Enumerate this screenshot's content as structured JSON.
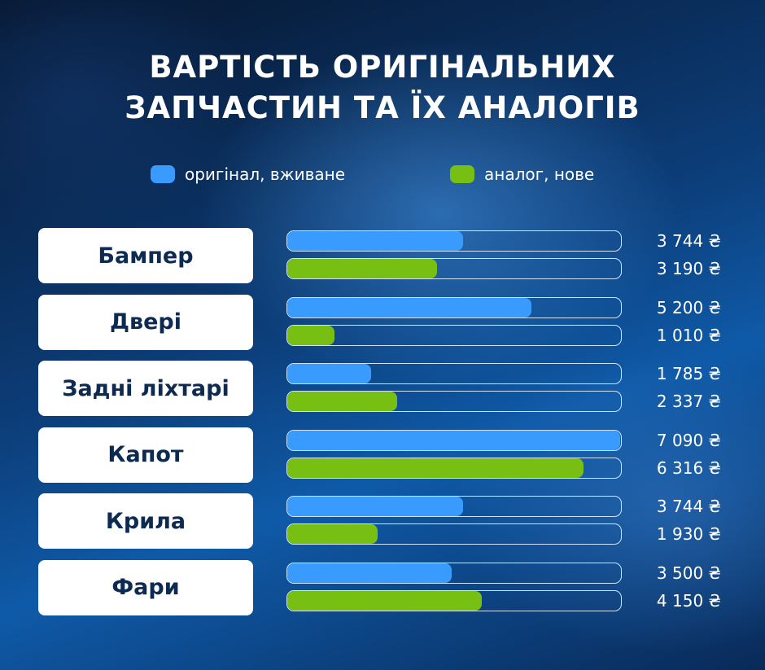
{
  "title": {
    "line1": "ВАРТІСТЬ ОРИГІНАЛЬНИХ",
    "line2": "ЗАПЧАСТИН ТА ЇХ АНАЛОГІВ"
  },
  "legend": [
    {
      "label": "оригінал, вживане",
      "color": "#3a9bff"
    },
    {
      "label": "аналог, нове",
      "color": "#78bf13"
    }
  ],
  "chart_data": {
    "type": "bar",
    "orientation": "horizontal",
    "title": "ВАРТІСТЬ ОРИГІНАЛЬНИХ ЗАПЧАСТИН ТА ЇХ АНАЛОГІВ",
    "categories": [
      "Бампер",
      "Двері",
      "Задні ліхтарі",
      "Капот",
      "Крила",
      "Фари"
    ],
    "series": [
      {
        "name": "оригінал, вживане",
        "color": "#3a9bff",
        "values": [
          3744,
          5200,
          1785,
          7090,
          3744,
          3500
        ],
        "labels": [
          "3 744 ₴",
          "5 200 ₴",
          "1 785 ₴",
          "7 090 ₴",
          "3 744 ₴",
          "3 500 ₴"
        ]
      },
      {
        "name": "аналог, нове",
        "color": "#78bf13",
        "values": [
          3190,
          1010,
          2337,
          6316,
          1930,
          4150
        ],
        "labels": [
          "3 190 ₴",
          "1 010 ₴",
          "2 337 ₴",
          "6 316 ₴",
          "1 930 ₴",
          "4 150 ₴"
        ]
      }
    ],
    "xlim": [
      0,
      7090
    ],
    "legend": "top",
    "grid": false
  }
}
